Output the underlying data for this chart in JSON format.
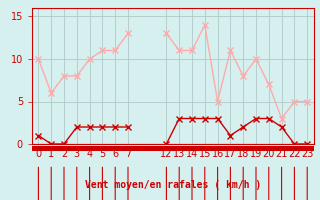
{
  "hours_left": [
    0,
    1,
    2,
    3,
    4,
    5,
    6,
    7
  ],
  "hours_right": [
    12,
    13,
    14,
    15,
    16,
    17,
    18,
    19,
    20,
    21,
    22,
    23
  ],
  "moyen_left": [
    1,
    0,
    0,
    2,
    2,
    2,
    2,
    2
  ],
  "moyen_right": [
    0,
    3,
    3,
    3,
    3,
    1,
    2,
    3,
    3,
    2,
    0,
    0
  ],
  "rafales_left": [
    10,
    6,
    8,
    8,
    10,
    11,
    11,
    13
  ],
  "rafales_right": [
    13,
    11,
    11,
    14,
    5,
    11,
    8,
    10,
    7,
    3,
    5,
    5
  ],
  "line_dark": "#cc0000",
  "line_light": "#ffaaaa",
  "bg_color": "#d6f0f0",
  "grid_color": "#b0c8c8",
  "xlabel": "Vent moyen/en rafales ( km/h )",
  "yticks": [
    0,
    5,
    10,
    15
  ],
  "ylim": [
    0,
    16
  ],
  "tick_fontsize": 7,
  "axis_fontsize": 7,
  "arrow_hours_left": [
    0,
    1,
    2,
    3,
    4,
    5,
    6,
    7
  ],
  "arrow_hours_right": [
    12,
    13,
    14,
    15,
    16,
    17,
    18,
    19,
    20,
    21,
    22,
    23
  ],
  "xtick_positions": [
    0,
    1,
    2,
    3,
    4,
    5,
    6,
    7,
    12,
    13,
    14,
    15,
    16,
    17,
    18,
    19,
    20,
    21,
    22,
    23
  ],
  "xtick_labels": [
    "0",
    "1",
    "2",
    "3",
    "4",
    "5",
    "6",
    "7",
    "12",
    "13",
    "14",
    "15",
    "16",
    "17",
    "18",
    "19",
    "20",
    "21",
    "22",
    "23"
  ]
}
